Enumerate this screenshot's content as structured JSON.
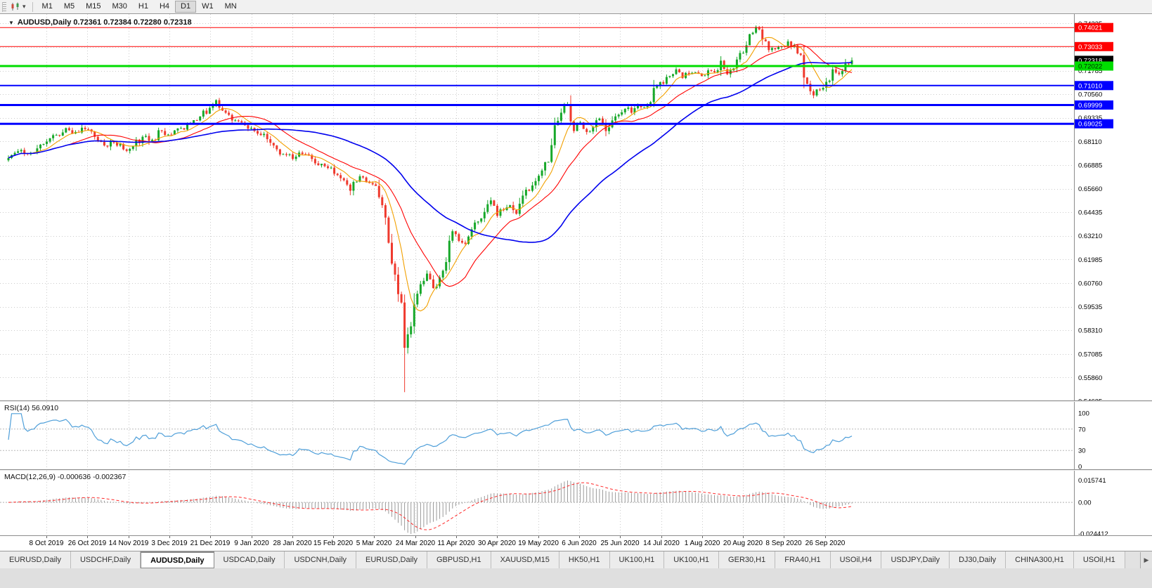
{
  "toolbar": {
    "timeframes": [
      "M1",
      "M5",
      "M15",
      "M30",
      "H1",
      "H4",
      "D1",
      "W1",
      "MN"
    ],
    "active_timeframe": "D1",
    "dropdown_glyph": "▾"
  },
  "chart": {
    "symbol": "AUDUSD",
    "period": "Daily",
    "marker_glyph": "▼",
    "title_line": "AUDUSD,Daily  0.72361 0.72384 0.72280 0.72318",
    "ohlc": {
      "open": "0.72361",
      "high": "0.72384",
      "low": "0.72280",
      "close": "0.72318"
    }
  },
  "price_axis": {
    "labels": [
      "0.74235",
      "0.73010",
      "0.71785",
      "0.70560",
      "0.69335",
      "0.68110",
      "0.66885",
      "0.65660",
      "0.64435",
      "0.63210",
      "0.61985",
      "0.60760",
      "0.59535",
      "0.58310",
      "0.57085",
      "0.55860",
      "0.54635"
    ],
    "boxes": [
      {
        "text": "0.74021",
        "price": 0.74021,
        "bg": "#ff0000",
        "fg": "#ffffff",
        "name": "resistance-1"
      },
      {
        "text": "0.73033",
        "price": 0.73033,
        "bg": "#ff0000",
        "fg": "#ffffff",
        "name": "resistance-2"
      },
      {
        "text": "0.72318",
        "price": 0.72318,
        "bg": "#000000",
        "fg": "#ffffff",
        "name": "current-price"
      },
      {
        "text": "0.72022",
        "price": 0.72022,
        "bg": "#00dd00",
        "fg": "#002b00",
        "name": "support-1"
      },
      {
        "text": "0.71010",
        "price": 0.7101,
        "bg": "#0000ff",
        "fg": "#ffffff",
        "name": "support-2"
      },
      {
        "text": "0.69999",
        "price": 0.69999,
        "bg": "#0000ff",
        "fg": "#ffffff",
        "name": "support-3"
      },
      {
        "text": "0.69025",
        "price": 0.69025,
        "bg": "#0000ff",
        "fg": "#ffffff",
        "name": "support-4"
      }
    ]
  },
  "rsi": {
    "label": "RSI(14) 56.0910",
    "levels": [
      {
        "text": "100",
        "value": 100
      },
      {
        "text": "70",
        "value": 70
      },
      {
        "text": "30",
        "value": 30
      },
      {
        "text": "0",
        "value": 0
      }
    ]
  },
  "macd": {
    "label": "MACD(12,26,9) -0.000636 -0.002367",
    "level_top": "0.015741",
    "level_zero": "0.00",
    "level_bottom": "-0.024412"
  },
  "date_axis": [
    "8 Oct 2019",
    "26 Oct 2019",
    "14 Nov 2019",
    "3 Dec 2019",
    "21 Dec 2019",
    "9 Jan 2020",
    "28 Jan 2020",
    "15 Feb 2020",
    "5 Mar 2020",
    "24 Mar 2020",
    "11 Apr 2020",
    "30 Apr 2020",
    "19 May 2020",
    "6 Jun 2020",
    "25 Jun 2020",
    "14 Jul 2020",
    "1 Aug 2020",
    "20 Aug 2020",
    "8 Sep 2020",
    "26 Sep 2020"
  ],
  "tabs": {
    "items": [
      "EURUSD,Daily",
      "USDCHF,Daily",
      "AUDUSD,Daily",
      "USDCAD,Daily",
      "USDCNH,Daily",
      "EURUSD,Daily",
      "GBPUSD,H1",
      "XAUUSD,M15",
      "HK50,H1",
      "UK100,H1",
      "UK100,H1",
      "GER30,H1",
      "FRA40,H1",
      "USOil,H4",
      "USDJPY,Daily",
      "DJ30,Daily",
      "CHINA300,H1",
      "USOil,H1"
    ],
    "active_index": 2,
    "scroll_right_icon": "▶"
  },
  "chart_data": {
    "type": "candlestick",
    "symbol": "AUDUSD",
    "timeframe": "Daily",
    "title": "AUDUSD,Daily  0.72361 0.72384 0.72280 0.72318",
    "x_labels": [
      "8 Oct 2019",
      "26 Oct 2019",
      "14 Nov 2019",
      "3 Dec 2019",
      "21 Dec 2019",
      "9 Jan 2020",
      "28 Jan 2020",
      "15 Feb 2020",
      "5 Mar 2020",
      "24 Mar 2020",
      "11 Apr 2020",
      "30 Apr 2020",
      "19 May 2020",
      "6 Jun 2020",
      "25 Jun 2020",
      "14 Jul 2020",
      "1 Aug 2020",
      "20 Aug 2020",
      "8 Sep 2020",
      "26 Sep 2020"
    ],
    "price_range": {
      "min": 0.5467,
      "max": 0.7472
    },
    "candle_count": 265,
    "last_candle": {
      "open": 0.72361,
      "high": 0.72384,
      "low": 0.7228,
      "close": 0.72318
    },
    "crash_low": 0.551,
    "crash_low_index": 124,
    "peak_high": 0.7413,
    "peak_high_index": 234,
    "candle_colors": {
      "up": "#17a82a",
      "down": "#ef3a2e"
    },
    "close_anchors": [
      [
        0,
        0.6725
      ],
      [
        3,
        0.676
      ],
      [
        6,
        0.6745
      ],
      [
        9,
        0.6775
      ],
      [
        12,
        0.681
      ],
      [
        15,
        0.6845
      ],
      [
        18,
        0.688
      ],
      [
        21,
        0.686
      ],
      [
        24,
        0.6875
      ],
      [
        27,
        0.6835
      ],
      [
        30,
        0.679
      ],
      [
        33,
        0.6805
      ],
      [
        36,
        0.677
      ],
      [
        39,
        0.6785
      ],
      [
        42,
        0.6835
      ],
      [
        45,
        0.682
      ],
      [
        48,
        0.6865
      ],
      [
        51,
        0.6845
      ],
      [
        54,
        0.688
      ],
      [
        57,
        0.6905
      ],
      [
        60,
        0.694
      ],
      [
        63,
        0.6985
      ],
      [
        65,
        0.7025
      ],
      [
        68,
        0.696
      ],
      [
        71,
        0.692
      ],
      [
        74,
        0.6895
      ],
      [
        77,
        0.6865
      ],
      [
        80,
        0.685
      ],
      [
        83,
        0.679
      ],
      [
        86,
        0.6745
      ],
      [
        89,
        0.672
      ],
      [
        92,
        0.6745
      ],
      [
        95,
        0.672
      ],
      [
        98,
        0.6695
      ],
      [
        101,
        0.6675
      ],
      [
        104,
        0.662
      ],
      [
        107,
        0.6555
      ],
      [
        110,
        0.663
      ],
      [
        113,
        0.6595
      ],
      [
        115,
        0.658
      ],
      [
        117,
        0.648
      ],
      [
        119,
        0.6285
      ],
      [
        121,
        0.612
      ],
      [
        123,
        0.5975
      ],
      [
        124,
        0.574
      ],
      [
        125,
        0.581
      ],
      [
        127,
        0.5965
      ],
      [
        129,
        0.607
      ],
      [
        131,
        0.6125
      ],
      [
        133,
        0.605
      ],
      [
        135,
        0.6105
      ],
      [
        137,
        0.6185
      ],
      [
        139,
        0.6345
      ],
      [
        141,
        0.6295
      ],
      [
        143,
        0.628
      ],
      [
        145,
        0.6355
      ],
      [
        147,
        0.6395
      ],
      [
        149,
        0.6445
      ],
      [
        151,
        0.6505
      ],
      [
        153,
        0.6425
      ],
      [
        155,
        0.6455
      ],
      [
        157,
        0.648
      ],
      [
        159,
        0.6435
      ],
      [
        161,
        0.653
      ],
      [
        163,
        0.6555
      ],
      [
        165,
        0.6605
      ],
      [
        167,
        0.666
      ],
      [
        169,
        0.6705
      ],
      [
        171,
        0.6895
      ],
      [
        173,
        0.696
      ],
      [
        175,
        0.7005
      ],
      [
        177,
        0.6865
      ],
      [
        179,
        0.691
      ],
      [
        181,
        0.686
      ],
      [
        183,
        0.6885
      ],
      [
        185,
        0.693
      ],
      [
        187,
        0.6865
      ],
      [
        189,
        0.692
      ],
      [
        191,
        0.695
      ],
      [
        193,
        0.698
      ],
      [
        195,
        0.696
      ],
      [
        197,
        0.7
      ],
      [
        199,
        0.699
      ],
      [
        201,
        0.7015
      ],
      [
        203,
        0.71
      ],
      [
        205,
        0.711
      ],
      [
        207,
        0.715
      ],
      [
        209,
        0.7185
      ],
      [
        211,
        0.714
      ],
      [
        213,
        0.716
      ],
      [
        215,
        0.717
      ],
      [
        217,
        0.715
      ],
      [
        219,
        0.718
      ],
      [
        221,
        0.717
      ],
      [
        223,
        0.723
      ],
      [
        225,
        0.716
      ],
      [
        227,
        0.719
      ],
      [
        229,
        0.727
      ],
      [
        231,
        0.731
      ],
      [
        233,
        0.7375
      ],
      [
        234,
        0.7405
      ],
      [
        236,
        0.734
      ],
      [
        238,
        0.7285
      ],
      [
        240,
        0.729
      ],
      [
        242,
        0.7305
      ],
      [
        244,
        0.733
      ],
      [
        246,
        0.731
      ],
      [
        248,
        0.726
      ],
      [
        250,
        0.711
      ],
      [
        252,
        0.705
      ],
      [
        254,
        0.708
      ],
      [
        256,
        0.712
      ],
      [
        258,
        0.7185
      ],
      [
        260,
        0.716
      ],
      [
        262,
        0.7215
      ],
      [
        264,
        0.7232
      ]
    ],
    "moving_averages": [
      {
        "name": "fast",
        "period": 8,
        "color": "#f2a000"
      },
      {
        "name": "medium",
        "period": 20,
        "color": "#ff0000"
      },
      {
        "name": "slow",
        "period": 50,
        "color": "#0000ee"
      }
    ],
    "hlines": [
      {
        "price": 0.74021,
        "color": "#ff0000",
        "width": 1
      },
      {
        "price": 0.73033,
        "color": "#ff0000",
        "width": 1
      },
      {
        "price": 0.72022,
        "color": "#00dd00",
        "width": 3
      },
      {
        "price": 0.7101,
        "color": "#0000ff",
        "width": 2
      },
      {
        "price": 0.69999,
        "color": "#0000ff",
        "width": 3
      },
      {
        "price": 0.69025,
        "color": "#0000ff",
        "width": 3
      }
    ],
    "indicators": [
      {
        "name": "RSI",
        "period": 14,
        "last_value": 56.091,
        "color": "#4f9fd9",
        "scale": [
          0,
          100
        ],
        "ref_levels": [
          70,
          30
        ]
      },
      {
        "name": "MACD",
        "fast": 12,
        "slow": 26,
        "signal": 9,
        "last_main": -0.000636,
        "last_signal": -0.002367,
        "scale_max": 0.015741,
        "scale_min": -0.024412,
        "histogram_color": "#9a9a9a",
        "signal_color": "#ff2a2a"
      }
    ]
  }
}
